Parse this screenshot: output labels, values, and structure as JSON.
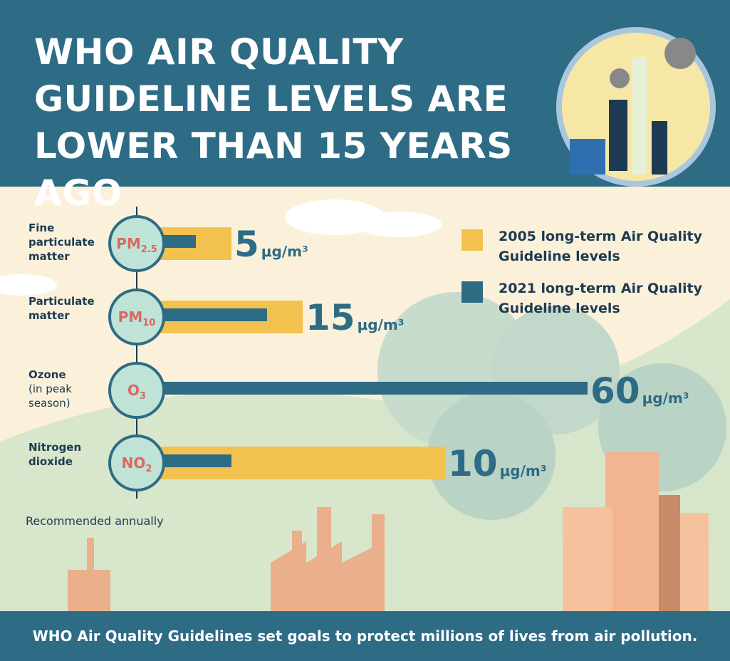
{
  "chart_data": {
    "type": "bar",
    "title": "WHO AIR QUALITY GUIDELINE LEVELS ARE LOWER THAN 15 YEARS AGO",
    "categories": [
      "Fine particulate matter",
      "Particulate matter",
      "Ozone",
      "Nitrogen dioxide"
    ],
    "category_notes": [
      null,
      null,
      "(in peak season)",
      null
    ],
    "symbols": [
      {
        "main": "PM",
        "sub": "2.5"
      },
      {
        "main": "PM",
        "sub": "10"
      },
      {
        "main": "O",
        "sub": "3"
      },
      {
        "main": "NO",
        "sub": "2"
      }
    ],
    "series": [
      {
        "name": "2005 long-term Air Quality Guideline levels",
        "color": "#f2c14e",
        "values": [
          10,
          20,
          null,
          40
        ]
      },
      {
        "name": "2021 long-term Air Quality Guideline levels",
        "color": "#2e6b85",
        "values": [
          5,
          15,
          60,
          10
        ]
      }
    ],
    "unit": "μg/m³",
    "label_series": 1,
    "note": "Recommended annually",
    "footer": "WHO Air Quality Guidelines set goals to protect millions of lives from air pollution."
  }
}
